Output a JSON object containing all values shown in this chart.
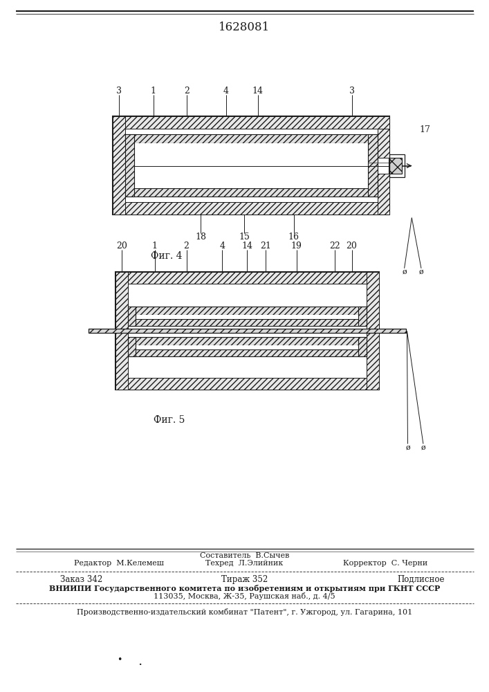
{
  "patent_number": "1628081",
  "bg": "#ffffff",
  "lc": "#1a1a1a",
  "fig4_caption": "Фиг. 4",
  "fig5_caption": "Фиг. 5",
  "footer_editor": "Редактор  М.Келемеш",
  "footer_composer": "Составитель  В.Сычев",
  "footer_techred": "Техред  Л.Элийник",
  "footer_corrector": "Корректор  С. Черни",
  "footer_order": "Заказ 342",
  "footer_tirazh": "Тираж 352",
  "footer_podl": "Подлисное",
  "footer_vniip": "ВНИИПИ Государственного комитета по изобретениям и открытиям при ГКНТ СССР",
  "footer_addr": "113035, Москва, Ж-35, Раушская наб., д. 4/5",
  "footer_patent": "Производственно-издательский комбинат \"Патент\", г. Ужгород, ул. Гагарина, 101"
}
